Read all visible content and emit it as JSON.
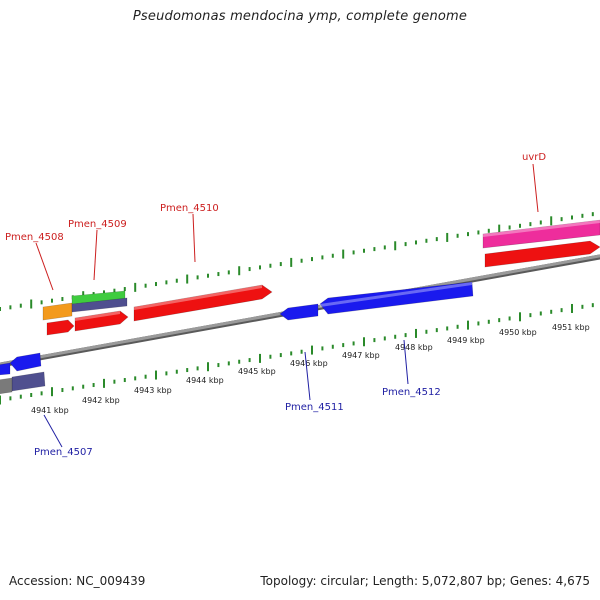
{
  "title": "Pseudomonas mendocina ymp, complete genome",
  "footer": {
    "accession": "Accession: NC_009439",
    "stats": "Topology: circular; Length: 5,072,807 bp; Genes: 4,675"
  },
  "colors": {
    "backbone": "#8c8c8c",
    "ticks": "#2a8a2a",
    "forward_label": "#cc1f1f",
    "reverse_label": "#1f1fa3",
    "gene_red": "#ee1111",
    "gene_blue": "#1a1aee",
    "gene_orange": "#f39a1c",
    "gene_green": "#3fcc3f",
    "gene_slate": "#4f4f8f",
    "gene_pink": "#ee2d9c"
  },
  "ticks": [
    {
      "label": "4941 kbp"
    },
    {
      "label": "4942 kbp"
    },
    {
      "label": "4943 kbp"
    },
    {
      "label": "4944 kbp"
    },
    {
      "label": "4945 kbp"
    },
    {
      "label": "4946 kbp"
    },
    {
      "label": "4947 kbp"
    },
    {
      "label": "4948 kbp"
    },
    {
      "label": "4949 kbp"
    },
    {
      "label": "4950 kbp"
    },
    {
      "label": "4951 kbp"
    }
  ],
  "gene_labels": [
    {
      "name": "Pmen_4508",
      "strand": "forward"
    },
    {
      "name": "Pmen_4509",
      "strand": "forward"
    },
    {
      "name": "Pmen_4510",
      "strand": "forward"
    },
    {
      "name": "uvrD",
      "strand": "forward"
    },
    {
      "name": "Pmen_4507",
      "strand": "reverse"
    },
    {
      "name": "Pmen_4511",
      "strand": "reverse"
    },
    {
      "name": "Pmen_4512",
      "strand": "reverse"
    }
  ]
}
